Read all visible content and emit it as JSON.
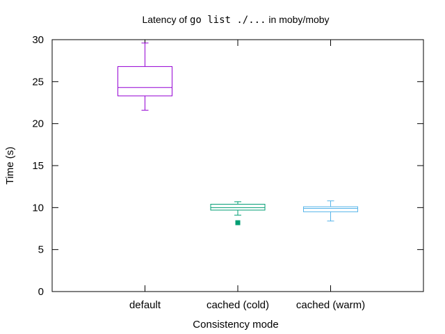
{
  "chart_data": {
    "type": "boxplot",
    "title": {
      "prefix": "Latency of ",
      "code": "go list ./...",
      "suffix": " in moby/moby"
    },
    "xlabel": "Consistency mode",
    "ylabel": "Time (s)",
    "ylim": [
      0,
      30
    ],
    "yticks": [
      0,
      5,
      10,
      15,
      20,
      25,
      30
    ],
    "grid": false,
    "legend": "none",
    "categories": [
      "default",
      "cached (cold)",
      "cached (warm)"
    ],
    "series": [
      {
        "category": "default",
        "color": "#9400d3",
        "min": 21.6,
        "q1": 23.3,
        "median": 24.3,
        "q3": 26.8,
        "max": 29.6,
        "outliers": []
      },
      {
        "category": "cached (cold)",
        "color": "#009e73",
        "min": 9.1,
        "q1": 9.7,
        "median": 10.0,
        "q3": 10.4,
        "max": 10.7,
        "outliers": [
          8.2
        ]
      },
      {
        "category": "cached (warm)",
        "color": "#56b4e9",
        "min": 8.4,
        "q1": 9.5,
        "median": 9.9,
        "q3": 10.1,
        "max": 10.8,
        "outliers": []
      }
    ]
  }
}
